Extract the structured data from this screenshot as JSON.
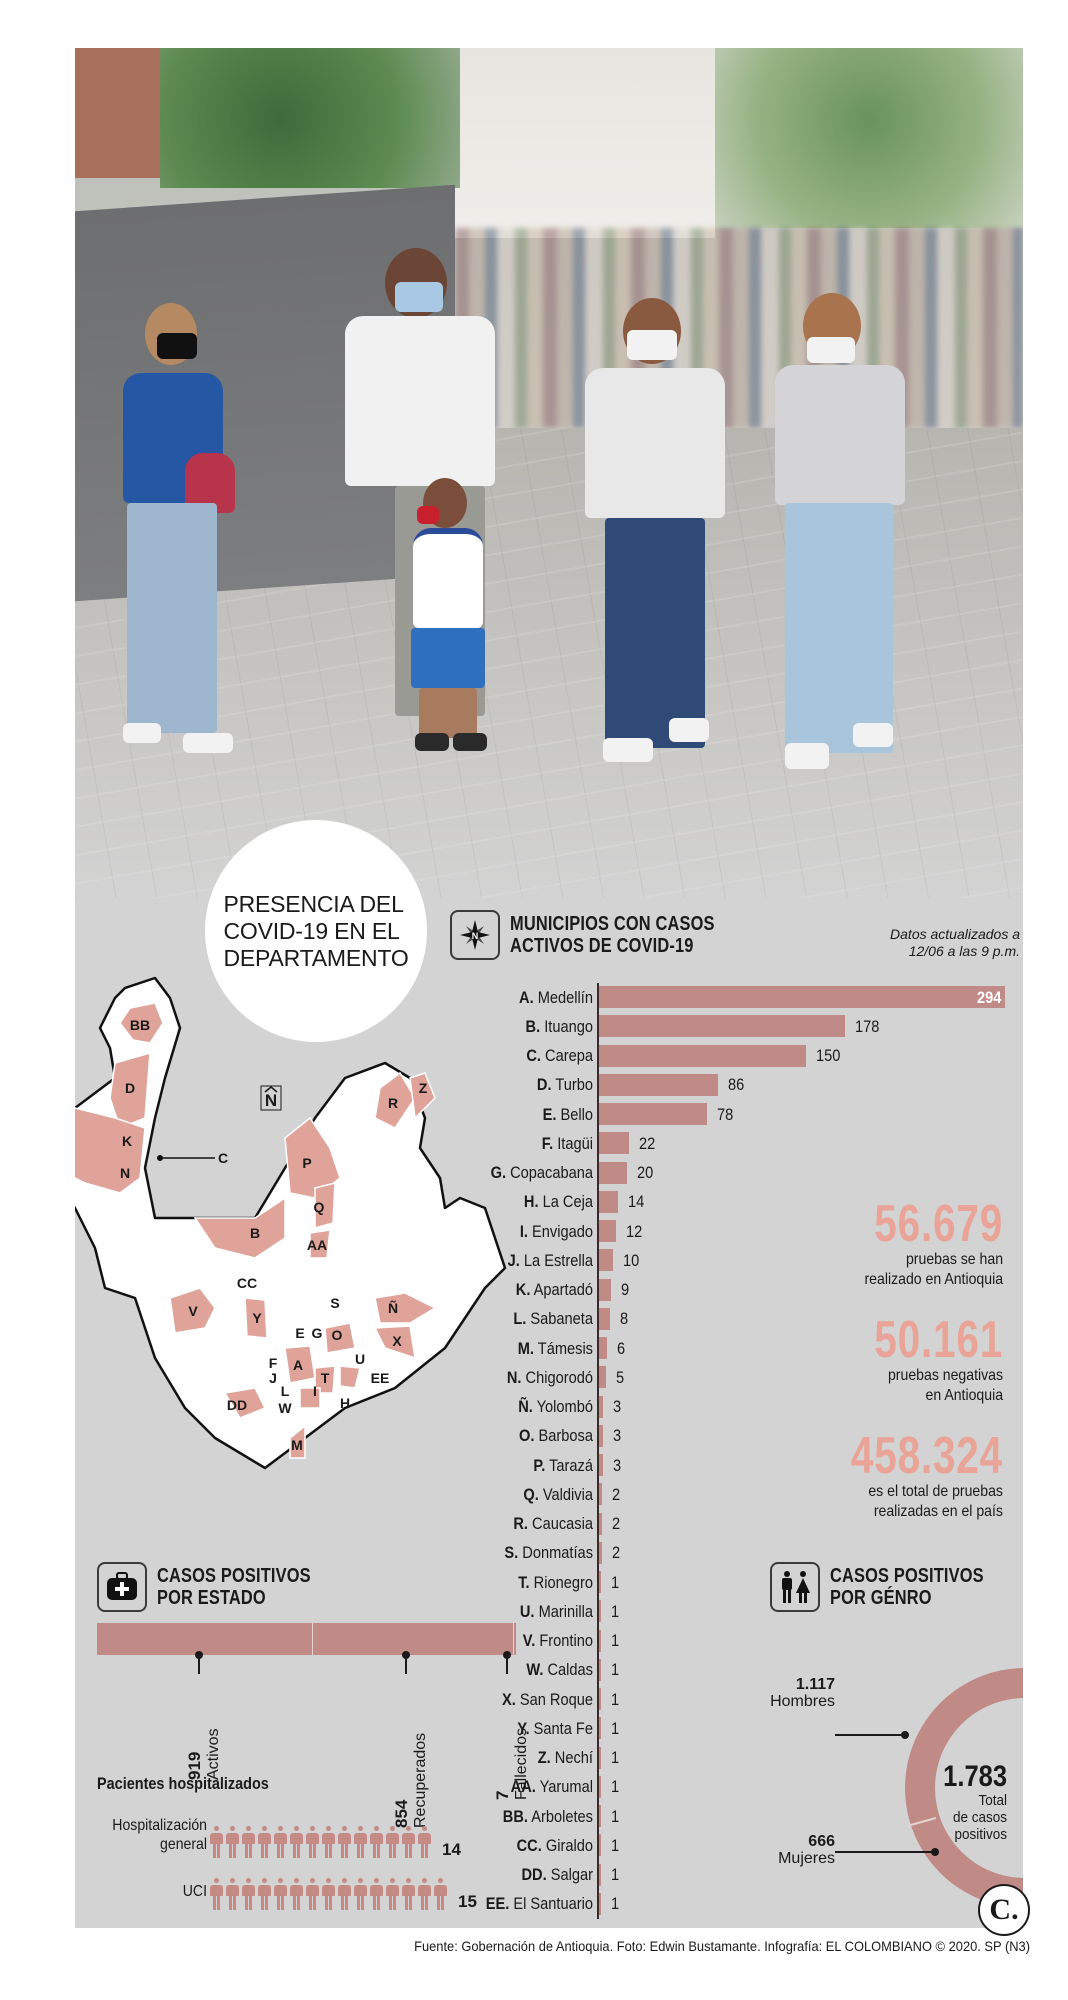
{
  "title": "PRESENCIA DEL COVID-19 EN EL DEPARTAMENTO",
  "title_lines": [
    "PRESENCIA DEL",
    "COVID-19 EN EL",
    "DEPARTAMENTO"
  ],
  "colors": {
    "bar": "#c08a86",
    "stat_number": "#e9a397",
    "panel_bg": "#d3d3d3",
    "map_fill": "#e0a39a"
  },
  "municipios": {
    "title_lines": [
      "MUNICIPIOS CON CASOS",
      "ACTIVOS DE COVID-19"
    ],
    "icon": "compass-north-icon",
    "updated_lines": [
      "Datos actualizados a",
      "12/06 a las 9 p.m."
    ]
  },
  "stats": [
    {
      "number": "56.679",
      "desc_lines": [
        "pruebas se han",
        "realizado en Antioquia"
      ]
    },
    {
      "number": "50.161",
      "desc_lines": [
        "pruebas negativas",
        "en Antioquia"
      ]
    },
    {
      "number": "458.324",
      "desc_lines": [
        "es el total de pruebas",
        "realizadas en el país"
      ]
    }
  ],
  "estado": {
    "title_lines": [
      "CASOS POSITIVOS",
      "POR ESTADO"
    ],
    "icon": "medical-kit-icon",
    "items": [
      {
        "label": "Activos",
        "value": "919"
      },
      {
        "label": "Recuperados",
        "value": "854"
      },
      {
        "label": "Fallecidos",
        "value": "7"
      }
    ]
  },
  "hospitalizados": {
    "title": "Pacientes hospitalizados",
    "rows": [
      {
        "label_lines": [
          "Hospitalización",
          "general"
        ],
        "count": "14"
      },
      {
        "label_lines": [
          "UCI"
        ],
        "count": "15"
      }
    ]
  },
  "genero": {
    "title_lines": [
      "CASOS POSITIVOS",
      "POR GÉNRO"
    ],
    "icon": "man-woman-icon",
    "hombres": {
      "value": "1.117",
      "label": "Hombres"
    },
    "mujeres": {
      "value": "666",
      "label": "Mujeres"
    },
    "total": {
      "value": "1.783",
      "desc_lines": [
        "Total",
        "de casos",
        "positivos"
      ]
    }
  },
  "map": {
    "north_label": "N̂",
    "labels": [
      "A",
      "B",
      "C",
      "D",
      "E",
      "F",
      "G",
      "H",
      "I",
      "J",
      "K",
      "L",
      "M",
      "N",
      "Ñ",
      "O",
      "P",
      "Q",
      "R",
      "S",
      "T",
      "U",
      "V",
      "W",
      "X",
      "Y",
      "Z",
      "AA",
      "BB",
      "CC",
      "DD",
      "EE"
    ]
  },
  "credit": "Fuente: Gobernación de Antioquia. Foto: Edwin Bustamante. Infografía: EL COLOMBIANO © 2020. SP (N3)",
  "logo": "C.",
  "chart_data": [
    {
      "type": "bar",
      "orientation": "horizontal",
      "title": "MUNICIPIOS CON CASOS ACTIVOS DE COVID-19",
      "subtitle": "Datos actualizados a 12/06 a las 9 p.m.",
      "xlabel": "",
      "ylabel": "",
      "grid": false,
      "categories": [
        "A. Medellín",
        "B. Ituango",
        "C. Carepa",
        "D. Turbo",
        "E. Bello",
        "F. Itagüi",
        "G. Copacabana",
        "H. La Ceja",
        "I. Envigado",
        "J. La Estrella",
        "K. Apartadó",
        "L. Sabaneta",
        "M. Támesis",
        "N. Chigorodó",
        "Ñ. Yolombó",
        "O. Barbosa",
        "P. Tarazá",
        "Q. Valdivia",
        "R. Caucasia",
        "S. Donmatías",
        "T. Rionegro",
        "U. Marinilla",
        "V. Frontino",
        "W. Caldas",
        "X. San Roque",
        "Y. Santa Fe",
        "Z. Nechí",
        "AA. Yarumal",
        "BB. Arboletes",
        "CC. Giraldo",
        "DD. Salgar",
        "EE. El Santuario"
      ],
      "letters": [
        "A.",
        "B.",
        "C.",
        "D.",
        "E.",
        "F.",
        "G.",
        "H.",
        "I.",
        "J.",
        "K.",
        "L.",
        "M.",
        "N.",
        "Ñ.",
        "O.",
        "P.",
        "Q.",
        "R.",
        "S.",
        "T.",
        "U.",
        "V.",
        "W.",
        "X.",
        "Y.",
        "Z.",
        "AA.",
        "BB.",
        "CC.",
        "DD.",
        "EE."
      ],
      "names": [
        "Medellín",
        "Ituango",
        "Carepa",
        "Turbo",
        "Bello",
        "Itagüi",
        "Copacabana",
        "La Ceja",
        "Envigado",
        "La Estrella",
        "Apartadó",
        "Sabaneta",
        "Támesis",
        "Chigorodó",
        "Yolombó",
        "Barbosa",
        "Tarazá",
        "Valdivia",
        "Caucasia",
        "Donmatías",
        "Rionegro",
        "Marinilla",
        "Frontino",
        "Caldas",
        "San Roque",
        "Santa Fe",
        "Nechí",
        "Yarumal",
        "Arboletes",
        "Giraldo",
        "Salgar",
        "El Santuario"
      ],
      "values": [
        294,
        178,
        150,
        86,
        78,
        22,
        20,
        14,
        12,
        10,
        9,
        8,
        6,
        5,
        3,
        3,
        3,
        2,
        2,
        2,
        1,
        1,
        1,
        1,
        1,
        1,
        1,
        1,
        1,
        1,
        1,
        1
      ],
      "xlim": [
        0,
        294
      ]
    },
    {
      "type": "bar",
      "orientation": "stacked-horizontal",
      "title": "CASOS POSITIVOS POR ESTADO",
      "categories": [
        "Activos",
        "Recuperados",
        "Fallecidos"
      ],
      "values": [
        919,
        854,
        7
      ]
    },
    {
      "type": "pictogram",
      "title": "Pacientes hospitalizados",
      "categories": [
        "Hospitalización general",
        "UCI"
      ],
      "values": [
        14,
        15
      ]
    },
    {
      "type": "pie",
      "style": "half-donut",
      "title": "CASOS POSITIVOS POR GÉNRO",
      "categories": [
        "Hombres",
        "Mujeres"
      ],
      "values": [
        1117,
        666
      ],
      "total": 1783,
      "center_label": "1.783 Total de casos positivos"
    }
  ]
}
